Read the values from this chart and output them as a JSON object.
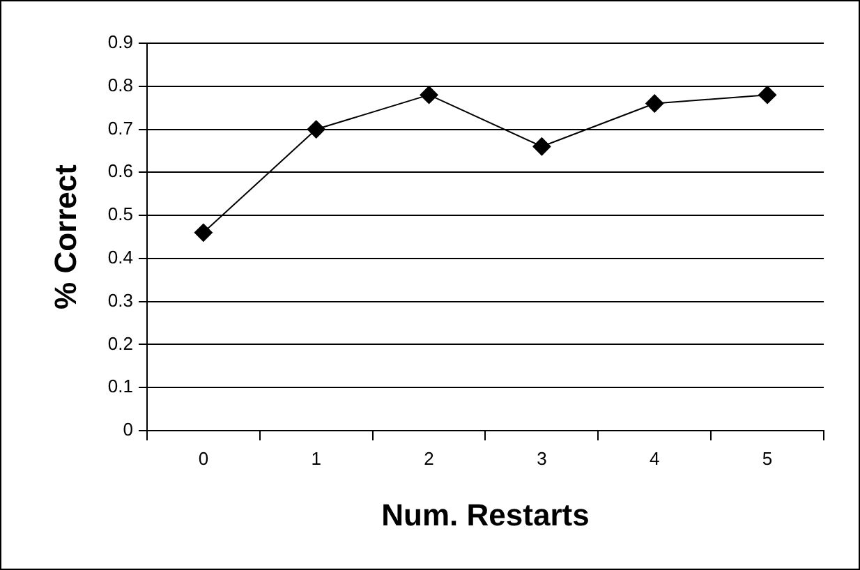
{
  "chart_data": {
    "type": "line",
    "xlabel": "Num. Restarts",
    "ylabel": "% Correct",
    "categories": [
      "0",
      "1",
      "2",
      "3",
      "4",
      "5"
    ],
    "series": [
      {
        "color": "#000000",
        "values": [
          0.46,
          0.7,
          0.78,
          0.66,
          0.76,
          0.78
        ]
      }
    ],
    "ylim": [
      0,
      0.9
    ],
    "yticks": [
      0,
      0.1,
      0.2,
      0.3,
      0.4,
      0.5,
      0.6,
      0.7,
      0.8,
      0.9
    ],
    "grid": "y",
    "legend": false,
    "marker": "diamond",
    "line_style": "solid"
  }
}
